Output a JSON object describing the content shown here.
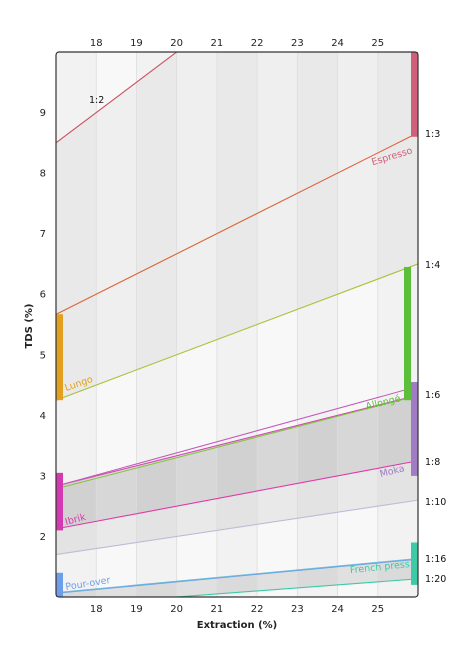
{
  "chart_data": {
    "type": "line",
    "xlabel": "Extraction (%)",
    "ylabel": "TDS (%)",
    "xlim": [
      17,
      26
    ],
    "ylim": [
      1,
      10
    ],
    "x_ticks": [
      18,
      19,
      20,
      21,
      22,
      23,
      24,
      25
    ],
    "y_ticks": [
      2,
      3,
      4,
      5,
      6,
      7,
      8,
      9
    ],
    "grid": true,
    "ratio_lines": [
      {
        "label": "1:2",
        "divisor": 2,
        "color": "#c9505f"
      },
      {
        "label": "1:3",
        "divisor": 3,
        "color": "#d9643a"
      },
      {
        "label": "1:4",
        "divisor": 4,
        "color": "#a8c23a"
      },
      {
        "label": "1:6",
        "divisor": 6,
        "color": "#d148b4"
      },
      {
        "label": "1:8",
        "divisor": 8,
        "color": "#e03aa8"
      },
      {
        "label": "1:10",
        "divisor": 10,
        "color": "#bcbcd8"
      },
      {
        "label": "1:16",
        "divisor": 16,
        "color": "#6f9ee8"
      },
      {
        "label": "1:20",
        "divisor": 20,
        "color": "#3ec9a7"
      }
    ],
    "inner_lines": [
      {
        "slope": 0.183,
        "intercept": -0.28,
        "color": "#c15ab8"
      },
      {
        "slope": 0.171,
        "intercept": -0.12,
        "color": "#83c43a"
      },
      {
        "slope": 0.0625,
        "intercept": 0.01,
        "color": "#6ab9d8"
      }
    ],
    "methods": [
      {
        "name": "Espresso",
        "color": "#d0607a",
        "bar": "right",
        "range": [
          8.6,
          10
        ]
      },
      {
        "name": "Lungo",
        "color": "#e3a020",
        "bar": "left",
        "range": [
          4.25,
          5.67
        ]
      },
      {
        "name": "Allongé",
        "color": "#5bbf3a",
        "bar": "right",
        "range": [
          4.25,
          6.45
        ]
      },
      {
        "name": "Moka",
        "color": "#a07cc5",
        "bar": "right",
        "range": [
          3.0,
          4.55
        ]
      },
      {
        "name": "Ibrik",
        "color": "#d43ab0",
        "bar": "left",
        "range": [
          2.1,
          3.05
        ]
      },
      {
        "name": "Pour-over",
        "color": "#6f9ee8",
        "bar": "left",
        "range": [
          1.0,
          1.4
        ]
      },
      {
        "name": "French press",
        "color": "#3ec9a7",
        "bar": "right",
        "range": [
          1.2,
          1.9
        ]
      }
    ],
    "colors": {
      "plot_bg": "#f8f8f8",
      "band_a": "#efefef",
      "band_b": "#e0e0e0",
      "band_c": "#d7d7d7",
      "band_d": "#e9e9e9",
      "frame": "#333333",
      "grid": "#dddddd"
    }
  }
}
